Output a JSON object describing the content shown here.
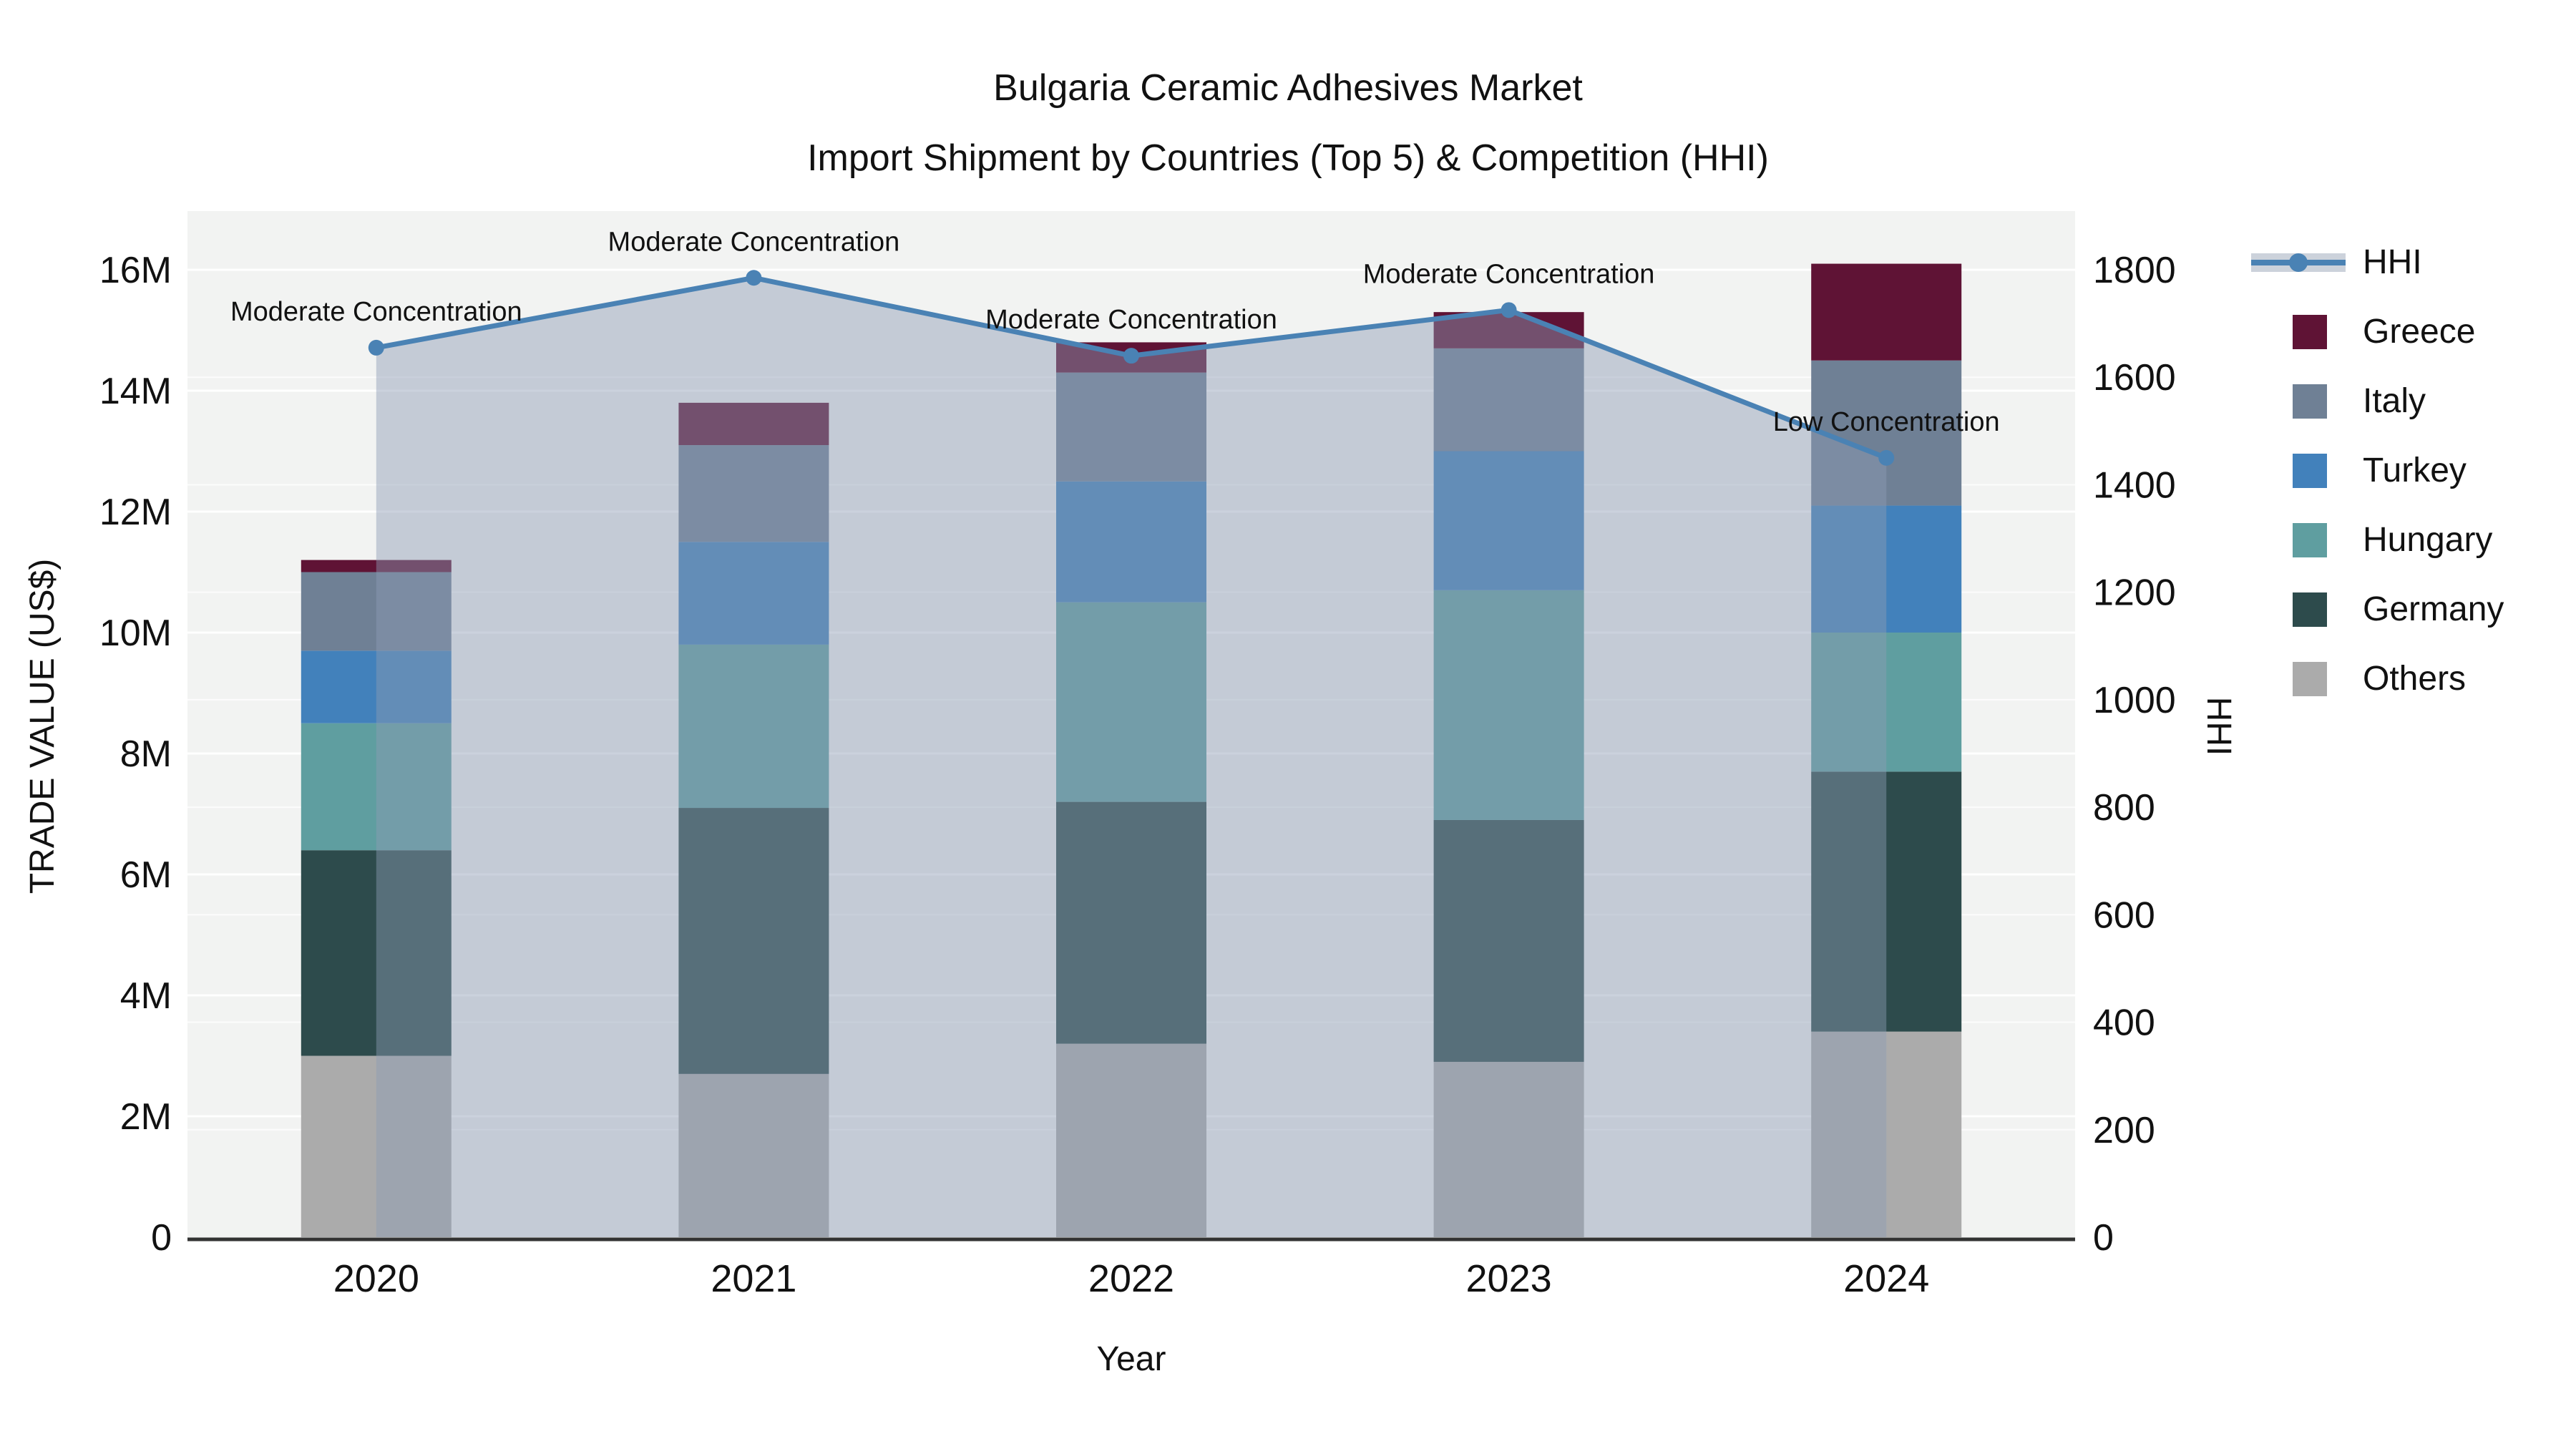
{
  "title": {
    "line1": "Bulgaria Ceramic Adhesives Market",
    "line2": "Import Shipment by Countries (Top 5) & Competition (HHI)"
  },
  "axes": {
    "x": {
      "title": "Year"
    },
    "y_left": {
      "title": "TRADE VALUE (US$)",
      "tick_labels": [
        "0",
        "2M",
        "4M",
        "6M",
        "8M",
        "10M",
        "12M",
        "14M",
        "16M"
      ],
      "range": [
        0,
        16000000
      ]
    },
    "y_right": {
      "title": "HHI",
      "tick_labels": [
        "0",
        "200",
        "400",
        "600",
        "800",
        "1000",
        "1200",
        "1400",
        "1600",
        "1800"
      ],
      "range": [
        0,
        1800
      ]
    }
  },
  "colors": {
    "plot_bg": "#f2f3f2",
    "grid": "#ffffff",
    "axis_line": "#333333",
    "text": "#111111",
    "line": "#4a82b4",
    "area_fill": "rgba(140,156,180,0.45)",
    "legend_band": "#ccd2db"
  },
  "legend": {
    "items": [
      {
        "label": "HHI",
        "type": "line",
        "color": "#4a82b4"
      },
      {
        "label": "Greece",
        "type": "square",
        "color": "#5f1335"
      },
      {
        "label": "Italy",
        "type": "square",
        "color": "#6f8095"
      },
      {
        "label": "Turkey",
        "type": "square",
        "color": "#4281bb"
      },
      {
        "label": "Hungary",
        "type": "square",
        "color": "#5f9ea0"
      },
      {
        "label": "Germany",
        "type": "square",
        "color": "#2d4b4c"
      },
      {
        "label": "Others",
        "type": "square",
        "color": "#ababab"
      }
    ]
  },
  "chart_data": {
    "type": "bar",
    "subtype": "stacked-bars-with-line-overlay",
    "title": "Bulgaria Ceramic Adhesives Market — Import Shipment by Countries (Top 5) & Competition (HHI)",
    "xlabel": "Year",
    "ylabel_left": "TRADE VALUE (US$)",
    "ylabel_right": "HHI",
    "categories": [
      "2020",
      "2021",
      "2022",
      "2023",
      "2024"
    ],
    "unit": "USD",
    "stack_order_bottom_to_top": [
      "Others",
      "Germany",
      "Hungary",
      "Turkey",
      "Italy",
      "Greece"
    ],
    "series": [
      {
        "name": "Others",
        "color": "#ababab",
        "values": [
          3000000,
          2700000,
          3200000,
          2900000,
          3400000
        ]
      },
      {
        "name": "Germany",
        "color": "#2d4b4c",
        "values": [
          3400000,
          4400000,
          4000000,
          4000000,
          4300000
        ]
      },
      {
        "name": "Hungary",
        "color": "#5f9ea0",
        "values": [
          2100000,
          2700000,
          3300000,
          3800000,
          2300000
        ]
      },
      {
        "name": "Turkey",
        "color": "#4281bb",
        "values": [
          1200000,
          1700000,
          2000000,
          2300000,
          2100000
        ]
      },
      {
        "name": "Italy",
        "color": "#6f8095",
        "values": [
          1300000,
          1600000,
          1800000,
          1700000,
          2400000
        ]
      },
      {
        "name": "Greece",
        "color": "#5f1335",
        "values": [
          200000,
          700000,
          500000,
          600000,
          1600000
        ]
      }
    ],
    "bar_totals": [
      11200000,
      13800000,
      14800000,
      15300000,
      16100000
    ],
    "line_series": {
      "name": "HHI",
      "axis": "right",
      "color": "#4a82b4",
      "area_fill": "rgba(140,156,180,0.45)",
      "values": [
        1655,
        1785,
        1640,
        1725,
        1450
      ]
    },
    "annotations": [
      {
        "category": "2020",
        "text": "Moderate Concentration"
      },
      {
        "category": "2021",
        "text": "Moderate Concentration"
      },
      {
        "category": "2022",
        "text": "Moderate Concentration"
      },
      {
        "category": "2023",
        "text": "Moderate Concentration"
      },
      {
        "category": "2024",
        "text": "Low Concentration"
      }
    ],
    "axis_ranges": {
      "left": [
        0,
        16000000
      ],
      "right": [
        0,
        1800
      ]
    },
    "grid": true,
    "legend_position": "right"
  }
}
